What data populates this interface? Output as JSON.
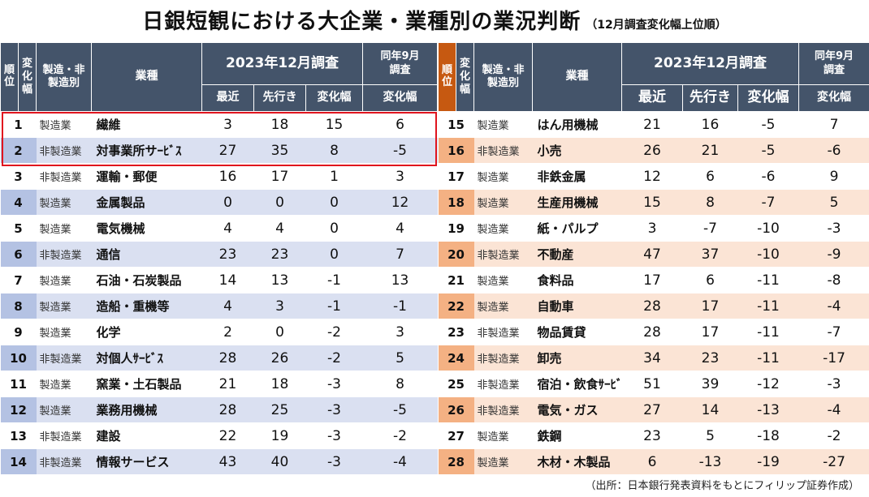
{
  "title": {
    "main": "日銀短観における大企業・業種別の業況判断",
    "sub": "（12月調査変化幅上位順）"
  },
  "headers": {
    "rank": [
      "順",
      "位"
    ],
    "change_rank": "変化幅",
    "type": [
      "製造・非",
      "製造別"
    ],
    "industry": "業種",
    "dec_survey": "2023年12月調査",
    "latest": "最近",
    "forecast": "先行き",
    "change": "変化幅",
    "sep_survey": [
      "同年9月",
      "調査"
    ],
    "sep_change": "変化幅"
  },
  "rows_left": [
    {
      "rank": "1",
      "type": "製造業",
      "industry": "繊維",
      "latest": "3",
      "forecast": "18",
      "change": "15",
      "sep_change": "6"
    },
    {
      "rank": "2",
      "type": "非製造業",
      "industry": "対事業所サｰﾋﾞｽ",
      "latest": "27",
      "forecast": "35",
      "change": "8",
      "sep_change": "-5"
    },
    {
      "rank": "3",
      "type": "非製造業",
      "industry": "運輸・郵便",
      "latest": "16",
      "forecast": "17",
      "change": "1",
      "sep_change": "3"
    },
    {
      "rank": "4",
      "type": "製造業",
      "industry": "金属製品",
      "latest": "0",
      "forecast": "0",
      "change": "0",
      "sep_change": "12"
    },
    {
      "rank": "5",
      "type": "製造業",
      "industry": "電気機械",
      "latest": "4",
      "forecast": "4",
      "change": "0",
      "sep_change": "4"
    },
    {
      "rank": "6",
      "type": "非製造業",
      "industry": "通信",
      "latest": "23",
      "forecast": "23",
      "change": "0",
      "sep_change": "7"
    },
    {
      "rank": "7",
      "type": "製造業",
      "industry": "石油・石炭製品",
      "latest": "14",
      "forecast": "13",
      "change": "-1",
      "sep_change": "13"
    },
    {
      "rank": "8",
      "type": "製造業",
      "industry": "造船・重機等",
      "latest": "4",
      "forecast": "3",
      "change": "-1",
      "sep_change": "-1"
    },
    {
      "rank": "9",
      "type": "製造業",
      "industry": "化学",
      "latest": "2",
      "forecast": "0",
      "change": "-2",
      "sep_change": "3"
    },
    {
      "rank": "10",
      "type": "非製造業",
      "industry": "対個人ｻｰﾋﾞｽ",
      "latest": "28",
      "forecast": "26",
      "change": "-2",
      "sep_change": "5"
    },
    {
      "rank": "11",
      "type": "製造業",
      "industry": "窯業・土石製品",
      "latest": "21",
      "forecast": "18",
      "change": "-3",
      "sep_change": "8"
    },
    {
      "rank": "12",
      "type": "製造業",
      "industry": "業務用機械",
      "latest": "28",
      "forecast": "25",
      "change": "-3",
      "sep_change": "-5"
    },
    {
      "rank": "13",
      "type": "非製造業",
      "industry": "建設",
      "latest": "22",
      "forecast": "19",
      "change": "-3",
      "sep_change": "-2"
    },
    {
      "rank": "14",
      "type": "非製造業",
      "industry": "情報サービス",
      "latest": "43",
      "forecast": "40",
      "change": "-3",
      "sep_change": "-4"
    }
  ],
  "rows_right": [
    {
      "rank": "15",
      "type": "製造業",
      "industry": "はん用機械",
      "latest": "21",
      "forecast": "16",
      "change": "-5",
      "sep_change": "7"
    },
    {
      "rank": "16",
      "type": "非製造業",
      "industry": "小売",
      "latest": "26",
      "forecast": "21",
      "change": "-5",
      "sep_change": "-6"
    },
    {
      "rank": "17",
      "type": "製造業",
      "industry": "非鉄金属",
      "latest": "12",
      "forecast": "6",
      "change": "-6",
      "sep_change": "9"
    },
    {
      "rank": "18",
      "type": "製造業",
      "industry": "生産用機械",
      "latest": "15",
      "forecast": "8",
      "change": "-7",
      "sep_change": "5"
    },
    {
      "rank": "19",
      "type": "製造業",
      "industry": "紙・パルプ",
      "latest": "3",
      "forecast": "-7",
      "change": "-10",
      "sep_change": "-3"
    },
    {
      "rank": "20",
      "type": "非製造業",
      "industry": "不動産",
      "latest": "47",
      "forecast": "37",
      "change": "-10",
      "sep_change": "-9"
    },
    {
      "rank": "21",
      "type": "製造業",
      "industry": "食料品",
      "latest": "17",
      "forecast": "6",
      "change": "-11",
      "sep_change": "-8"
    },
    {
      "rank": "22",
      "type": "製造業",
      "industry": "自動車",
      "latest": "28",
      "forecast": "17",
      "change": "-11",
      "sep_change": "-4"
    },
    {
      "rank": "23",
      "type": "非製造業",
      "industry": "物品賃貸",
      "latest": "28",
      "forecast": "17",
      "change": "-11",
      "sep_change": "-7"
    },
    {
      "rank": "24",
      "type": "非製造業",
      "industry": "卸売",
      "latest": "34",
      "forecast": "23",
      "change": "-11",
      "sep_change": "-17"
    },
    {
      "rank": "25",
      "type": "非製造業",
      "industry": "宿泊・飲食ｻｰﾋﾞｽ",
      "latest": "51",
      "forecast": "39",
      "change": "-12",
      "sep_change": "-3"
    },
    {
      "rank": "26",
      "type": "非製造業",
      "industry": "電気・ガス",
      "latest": "27",
      "forecast": "14",
      "change": "-13",
      "sep_change": "-4"
    },
    {
      "rank": "27",
      "type": "製造業",
      "industry": "鉄鋼",
      "latest": "23",
      "forecast": "5",
      "change": "-18",
      "sep_change": "-2"
    },
    {
      "rank": "28",
      "type": "製造業",
      "industry": "木材・木製品",
      "latest": "6",
      "forecast": "-13",
      "change": "-19",
      "sep_change": "-27"
    }
  ],
  "source": "（出所：日本銀行発表資料をもとにフィリップ証券作成）",
  "colors": {
    "header": "#44546a",
    "left_band": "#dae0f1",
    "left_rank_band": "#b4c2e3",
    "right_band": "#fbe4d5",
    "right_rank_band": "#f4b183",
    "highlight": "#e0141e"
  }
}
